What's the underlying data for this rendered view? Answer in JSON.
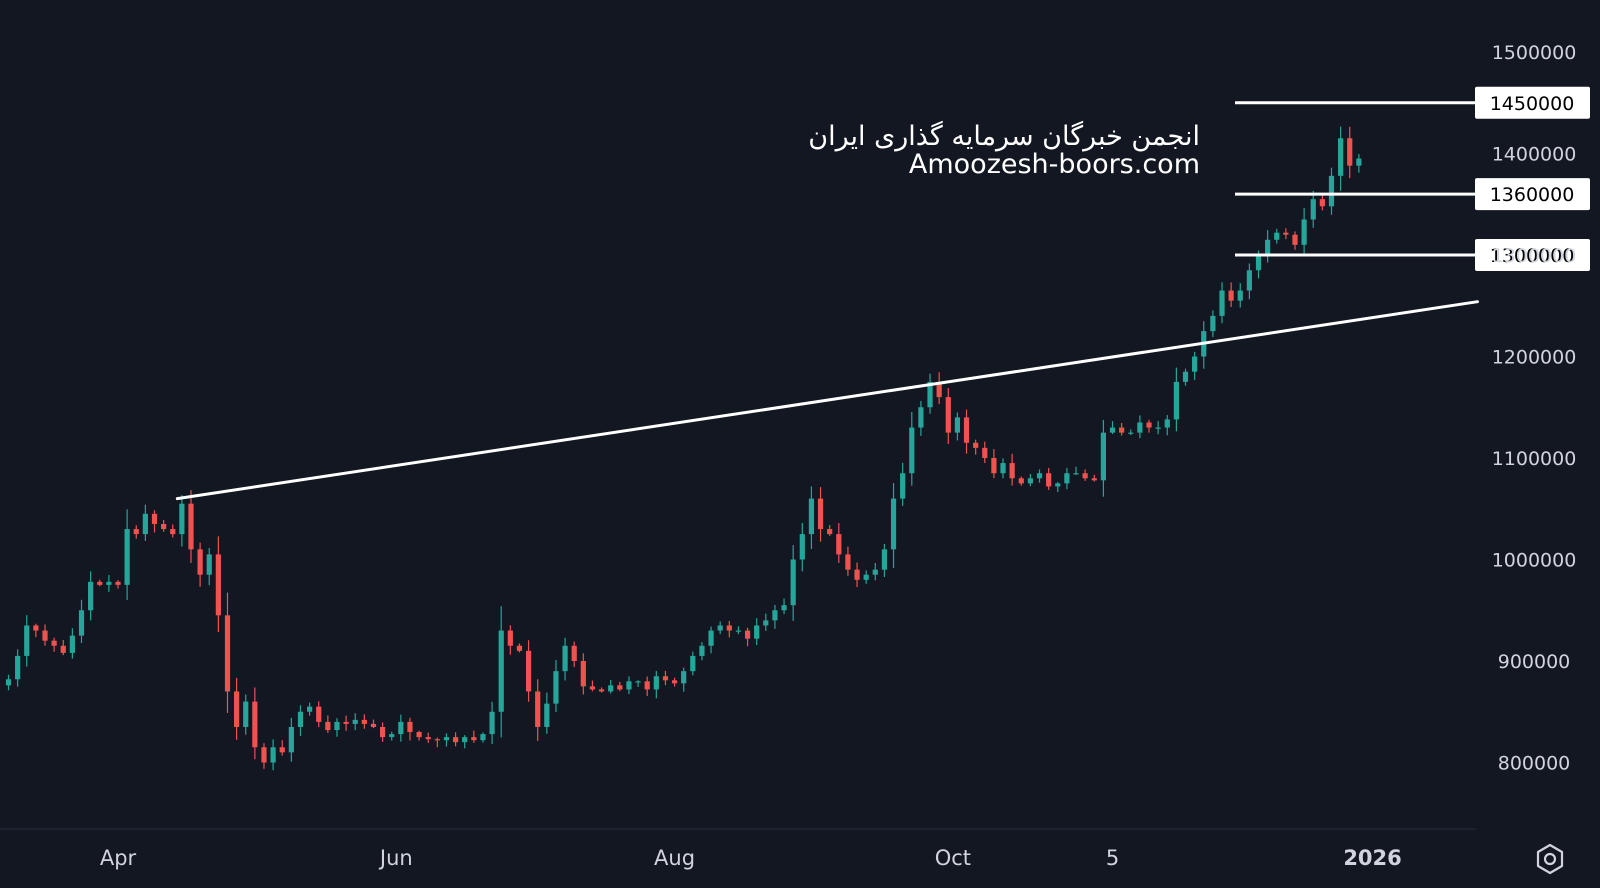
{
  "chart_data": {
    "type": "candlestick",
    "title": "",
    "y_axis": {
      "ylim": [
        730000,
        1530000
      ],
      "ticks": [
        "800000",
        "900000",
        "1000000",
        "1100000",
        "1200000",
        "1300000",
        "1400000",
        "1500000"
      ],
      "tick_values": [
        800000,
        900000,
        1000000,
        1100000,
        1200000,
        1300000,
        1400000,
        1500000
      ]
    },
    "x_axis": {
      "ticks": [
        {
          "label": "Apr",
          "date": "2025-04-01"
        },
        {
          "label": "Jun",
          "date": "2025-06-01"
        },
        {
          "label": "Aug",
          "date": "2025-08-01"
        },
        {
          "label": "Oct",
          "date": "2025-10-01"
        },
        {
          "label": "5",
          "date": "2025-11-05"
        },
        {
          "label": "2026",
          "date": "2026-01-01",
          "bold": true
        }
      ]
    },
    "start_date": "2025-03-08",
    "bar_days": 2,
    "close": [
      882000,
      905000,
      935000,
      930000,
      920000,
      915000,
      908000,
      925000,
      950000,
      978000,
      975000,
      978000,
      975000,
      1030000,
      1025000,
      1045000,
      1035000,
      1030000,
      1025000,
      1055000,
      1010000,
      985000,
      1005000,
      945000,
      870000,
      835000,
      860000,
      815000,
      800000,
      815000,
      810000,
      835000,
      850000,
      855000,
      840000,
      832000,
      840000,
      838000,
      842000,
      838000,
      835000,
      825000,
      828000,
      840000,
      830000,
      825000,
      823000,
      822000,
      825000,
      820000,
      825000,
      822000,
      828000,
      850000,
      930000,
      915000,
      910000,
      870000,
      835000,
      858000,
      890000,
      915000,
      900000,
      875000,
      872000,
      870000,
      876000,
      872000,
      880000,
      880000,
      872000,
      885000,
      881000,
      878000,
      890000,
      905000,
      915000,
      930000,
      935000,
      930000,
      930000,
      922000,
      935000,
      940000,
      950000,
      955000,
      1000000,
      1025000,
      1060000,
      1030000,
      1025000,
      1005000,
      990000,
      980000,
      985000,
      990000,
      1010000,
      1060000,
      1085000,
      1130000,
      1150000,
      1175000,
      1160000,
      1125000,
      1140000,
      1115000,
      1110000,
      1100000,
      1085000,
      1095000,
      1080000,
      1075000,
      1080000,
      1085000,
      1072000,
      1075000,
      1085000,
      1085000,
      1080000,
      1078000,
      1125000,
      1130000,
      1125000,
      1125000,
      1135000,
      1130000,
      1130000,
      1138000,
      1175000,
      1185000,
      1200000,
      1225000,
      1240000,
      1265000,
      1255000,
      1265000,
      1285000,
      1300000,
      1315000,
      1322000,
      1320000,
      1310000,
      1335000,
      1355000,
      1348000,
      1378000,
      1415000,
      1388000,
      1395000
    ],
    "levels": [
      {
        "label": "1450000",
        "value": 1450000
      },
      {
        "label": "1360000",
        "value": 1360000
      },
      {
        "label": "1300000",
        "value": 1300000
      }
    ],
    "trendline": {
      "from": {
        "date": "2025-04-14",
        "price": 1060000
      },
      "to": {
        "date": "2026-01-24",
        "price": 1254000
      }
    },
    "colors": {
      "background": "#131722",
      "up": "#26a69a",
      "down": "#ef5350",
      "levels": "#ffffff",
      "trendline": "#ffffff",
      "text": "#d1d4dc"
    }
  },
  "watermark": {
    "persian": "انجمن خبرگان سرمایه گذاری ایران",
    "latin": "Amoozesh-boors.com"
  },
  "settings_icon": "settings-hexagon-icon"
}
